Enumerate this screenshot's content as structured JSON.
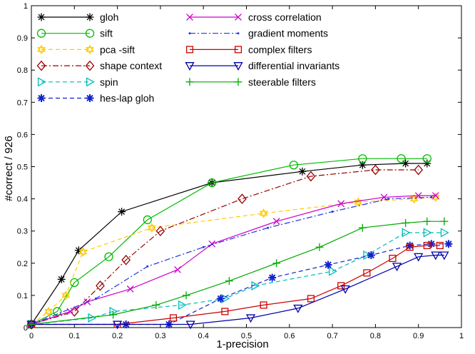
{
  "chart_data": {
    "type": "line",
    "xlabel": "1-precision",
    "ylabel": "#correct / 926",
    "xlim": [
      0,
      1
    ],
    "ylim": [
      0,
      1
    ],
    "xticks": [
      "0",
      "0.1",
      "0.2",
      "0.3",
      "0.4",
      "0.5",
      "0.6",
      "0.7",
      "0.8",
      "0.9",
      "1"
    ],
    "yticks": [
      "0",
      "0.1",
      "0.2",
      "0.3",
      "0.4",
      "0.5",
      "0.6",
      "0.7",
      "0.8",
      "0.9",
      "1"
    ],
    "grid": false,
    "legend_position": "top-left",
    "series": [
      {
        "name": "gloh",
        "color": "#000000",
        "dash": "solid",
        "marker": "asterisk",
        "x": [
          0,
          0.07,
          0.11,
          0.21,
          0.42,
          0.63,
          0.77,
          0.87,
          0.92
        ],
        "y": [
          0.01,
          0.15,
          0.24,
          0.36,
          0.45,
          0.485,
          0.505,
          0.51,
          0.51
        ]
      },
      {
        "name": "sift",
        "color": "#00bb00",
        "dash": "solid",
        "marker": "circle",
        "x": [
          0,
          0.06,
          0.1,
          0.18,
          0.27,
          0.42,
          0.61,
          0.77,
          0.86,
          0.92
        ],
        "y": [
          0.01,
          0.05,
          0.14,
          0.22,
          0.335,
          0.45,
          0.505,
          0.525,
          0.525,
          0.525
        ]
      },
      {
        "name": "pca -sift",
        "color": "#ffcc00",
        "dash": "dashed",
        "marker": "hexagram",
        "x": [
          0,
          0.04,
          0.08,
          0.12,
          0.28,
          0.54,
          0.76,
          0.89,
          0.94
        ],
        "y": [
          0.01,
          0.05,
          0.1,
          0.235,
          0.31,
          0.355,
          0.39,
          0.4,
          0.405
        ]
      },
      {
        "name": "shape context",
        "color": "#990000",
        "dash": "dashdot",
        "marker": "diamond",
        "x": [
          0,
          0.1,
          0.16,
          0.22,
          0.3,
          0.49,
          0.65,
          0.8,
          0.9
        ],
        "y": [
          0.01,
          0.05,
          0.13,
          0.21,
          0.3,
          0.4,
          0.47,
          0.49,
          0.49
        ]
      },
      {
        "name": "spin",
        "color": "#00bbbb",
        "dash": "dashed",
        "marker": "triangle-right",
        "x": [
          0,
          0.14,
          0.19,
          0.35,
          0.45,
          0.52,
          0.7,
          0.78,
          0.87,
          0.92,
          0.96
        ],
        "y": [
          0.01,
          0.03,
          0.05,
          0.07,
          0.09,
          0.13,
          0.175,
          0.225,
          0.295,
          0.295,
          0.295
        ]
      },
      {
        "name": "hes-lap gloh",
        "color": "#1122cc",
        "dash": "dashed",
        "marker": "star",
        "x": [
          0,
          0.22,
          0.32,
          0.44,
          0.56,
          0.69,
          0.79,
          0.88,
          0.93,
          0.97
        ],
        "y": [
          0.01,
          0.01,
          0.01,
          0.09,
          0.155,
          0.195,
          0.225,
          0.255,
          0.26,
          0.26
        ]
      },
      {
        "name": "cross correlation",
        "color": "#cc00cc",
        "dash": "solid",
        "marker": "cross",
        "x": [
          0,
          0.09,
          0.13,
          0.23,
          0.34,
          0.42,
          0.57,
          0.72,
          0.82,
          0.9,
          0.94
        ],
        "y": [
          0.01,
          0.05,
          0.08,
          0.12,
          0.18,
          0.26,
          0.33,
          0.385,
          0.405,
          0.41,
          0.41
        ]
      },
      {
        "name": "gradient moments",
        "color": "#2233dd",
        "dash": "dashdot",
        "marker": "dot",
        "x": [
          0,
          0.15,
          0.27,
          0.4,
          0.55,
          0.7,
          0.83,
          0.93
        ],
        "y": [
          0.01,
          0.09,
          0.19,
          0.25,
          0.31,
          0.36,
          0.4,
          0.405
        ]
      },
      {
        "name": "complex filters",
        "color": "#cc0000",
        "dash": "solid",
        "marker": "square",
        "x": [
          0,
          0.2,
          0.33,
          0.45,
          0.54,
          0.65,
          0.72,
          0.78,
          0.84,
          0.88,
          0.92,
          0.95
        ],
        "y": [
          0.01,
          0.01,
          0.03,
          0.05,
          0.07,
          0.09,
          0.13,
          0.17,
          0.215,
          0.25,
          0.255,
          0.255
        ]
      },
      {
        "name": "differential invariants",
        "color": "#0000aa",
        "dash": "solid",
        "marker": "triangle-down",
        "x": [
          0,
          0.2,
          0.37,
          0.51,
          0.62,
          0.73,
          0.85,
          0.9,
          0.94,
          0.96
        ],
        "y": [
          0.01,
          0.01,
          0.01,
          0.03,
          0.06,
          0.12,
          0.19,
          0.22,
          0.225,
          0.225
        ]
      },
      {
        "name": "steerable filters",
        "color": "#00aa00",
        "dash": "solid",
        "marker": "plus",
        "x": [
          0,
          0.19,
          0.29,
          0.36,
          0.46,
          0.57,
          0.67,
          0.77,
          0.87,
          0.92,
          0.96
        ],
        "y": [
          0.01,
          0.04,
          0.07,
          0.1,
          0.145,
          0.2,
          0.25,
          0.31,
          0.325,
          0.33,
          0.33
        ]
      }
    ]
  }
}
